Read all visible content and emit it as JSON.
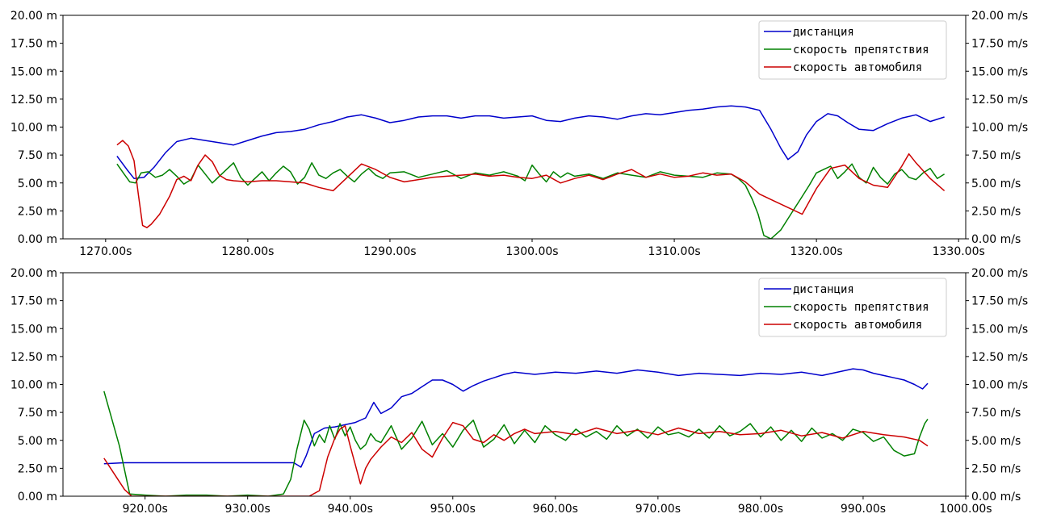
{
  "chart_data": [
    {
      "type": "line",
      "title": "",
      "xlim": [
        1267,
        1330.5
      ],
      "ylim_left": [
        0,
        20
      ],
      "ylim_right": [
        0,
        20
      ],
      "x_ticks": [
        1270,
        1280,
        1290,
        1300,
        1310,
        1320,
        1330
      ],
      "x_tick_labels": [
        "1270.00s",
        "1280.00s",
        "1290.00s",
        "1300.00s",
        "1310.00s",
        "1320.00s",
        "1330.00s"
      ],
      "y_ticks": [
        0,
        2.5,
        5,
        7.5,
        10,
        12.5,
        15,
        17.5,
        20
      ],
      "y_left_tick_labels": [
        "0.00 m",
        "2.50 m",
        "5.00 m",
        "7.50 m",
        "10.00 m",
        "12.50 m",
        "15.00 m",
        "17.50 m",
        "20.00 m"
      ],
      "y_right_tick_labels": [
        "0.00 m/s",
        "2.50 m/s",
        "5.00 m/s",
        "7.50 m/s",
        "10.00 m/s",
        "12.50 m/s",
        "15.00 m/s",
        "17.50 m/s",
        "20.00 m/s"
      ],
      "grid": false,
      "legend_position": "top-right",
      "series": [
        {
          "name": "дистанция",
          "color": "#0000cc",
          "axis": "left",
          "x": [
            1270.8,
            1271.5,
            1272.0,
            1272.7,
            1273.4,
            1274.2,
            1275.0,
            1276.0,
            1277.0,
            1278.0,
            1279.0,
            1280.0,
            1281.0,
            1282.0,
            1283.0,
            1284.0,
            1285.0,
            1286.0,
            1287.0,
            1288.0,
            1289.0,
            1290.0,
            1291.0,
            1292.0,
            1293.0,
            1294.0,
            1295.0,
            1296.0,
            1297.0,
            1298.0,
            1299.0,
            1300.0,
            1301.0,
            1302.0,
            1303.0,
            1304.0,
            1305.0,
            1306.0,
            1307.0,
            1308.0,
            1309.0,
            1310.0,
            1311.0,
            1312.0,
            1313.0,
            1314.0,
            1315.0,
            1316.0,
            1316.8,
            1317.5,
            1318.0,
            1318.7,
            1319.3,
            1320.0,
            1320.8,
            1321.5,
            1322.2,
            1323.0,
            1324.0,
            1325.0,
            1326.0,
            1327.0,
            1328.0,
            1329.0
          ],
          "values": [
            7.4,
            6.2,
            5.4,
            5.5,
            6.4,
            7.7,
            8.7,
            9.0,
            8.8,
            8.6,
            8.4,
            8.8,
            9.2,
            9.5,
            9.6,
            9.8,
            10.2,
            10.5,
            10.9,
            11.1,
            10.8,
            10.4,
            10.6,
            10.9,
            11.0,
            11.0,
            10.8,
            11.0,
            11.0,
            10.8,
            10.9,
            11.0,
            10.6,
            10.5,
            10.8,
            11.0,
            10.9,
            10.7,
            11.0,
            11.2,
            11.1,
            11.3,
            11.5,
            11.6,
            11.8,
            11.9,
            11.8,
            11.5,
            9.8,
            8.1,
            7.1,
            7.8,
            9.3,
            10.5,
            11.2,
            11.0,
            10.4,
            9.8,
            9.7,
            10.3,
            10.8,
            11.1,
            10.5,
            10.9
          ]
        },
        {
          "name": "скорость препятствия",
          "color": "#008000",
          "axis": "right",
          "x": [
            1270.8,
            1271.3,
            1271.7,
            1272.1,
            1272.5,
            1273.0,
            1273.5,
            1274.0,
            1274.5,
            1275.0,
            1275.5,
            1276.0,
            1276.5,
            1277.0,
            1277.5,
            1278.0,
            1278.5,
            1279.0,
            1279.5,
            1280.0,
            1280.5,
            1281.0,
            1281.5,
            1282.0,
            1282.5,
            1283.0,
            1283.5,
            1284.0,
            1284.5,
            1285.0,
            1285.5,
            1286.0,
            1286.5,
            1287.0,
            1287.5,
            1288.0,
            1288.5,
            1289.0,
            1289.5,
            1290.0,
            1291.0,
            1292.0,
            1293.0,
            1294.0,
            1295.0,
            1296.0,
            1297.0,
            1298.0,
            1299.0,
            1299.5,
            1300.0,
            1300.5,
            1301.0,
            1301.5,
            1302.0,
            1302.5,
            1303.0,
            1304.0,
            1305.0,
            1306.0,
            1307.0,
            1308.0,
            1309.0,
            1310.0,
            1311.0,
            1312.0,
            1313.0,
            1314.0,
            1314.5,
            1315.0,
            1315.5,
            1315.9,
            1316.3,
            1316.8,
            1317.5,
            1318.2,
            1318.9,
            1319.5,
            1320.0,
            1320.5,
            1321.0,
            1321.5,
            1322.0,
            1322.5,
            1323.0,
            1323.5,
            1324.0,
            1324.5,
            1325.0,
            1325.5,
            1326.0,
            1326.5,
            1327.0,
            1327.5,
            1328.0,
            1328.5,
            1329.0
          ],
          "values": [
            6.7,
            5.8,
            5.1,
            5.0,
            5.9,
            6.0,
            5.5,
            5.7,
            6.2,
            5.6,
            4.9,
            5.3,
            6.6,
            5.8,
            5.0,
            5.6,
            6.2,
            6.8,
            5.5,
            4.8,
            5.4,
            6.0,
            5.2,
            5.9,
            6.5,
            6.0,
            4.9,
            5.5,
            6.8,
            5.7,
            5.4,
            5.9,
            6.2,
            5.6,
            5.1,
            5.8,
            6.3,
            5.7,
            5.4,
            5.9,
            6.0,
            5.5,
            5.8,
            6.1,
            5.4,
            5.9,
            5.7,
            6.0,
            5.6,
            5.2,
            6.6,
            5.8,
            5.1,
            6.0,
            5.5,
            5.9,
            5.6,
            5.8,
            5.4,
            5.9,
            5.7,
            5.5,
            6.0,
            5.7,
            5.6,
            5.5,
            5.9,
            5.8,
            5.4,
            4.8,
            3.5,
            2.2,
            0.3,
            0.0,
            0.8,
            2.2,
            3.6,
            4.8,
            5.9,
            6.2,
            6.5,
            5.4,
            6.0,
            6.7,
            5.5,
            5.0,
            6.4,
            5.5,
            4.9,
            5.8,
            6.2,
            5.5,
            5.3,
            5.9,
            6.3,
            5.4,
            5.8
          ]
        },
        {
          "name": "скорость автомобиля",
          "color": "#cc0000",
          "axis": "right",
          "x": [
            1270.8,
            1271.2,
            1271.6,
            1272.0,
            1272.3,
            1272.6,
            1272.9,
            1273.2,
            1273.8,
            1274.5,
            1275.0,
            1275.5,
            1276.0,
            1276.5,
            1277.0,
            1277.5,
            1278.0,
            1278.5,
            1279.0,
            1280.0,
            1281.0,
            1282.0,
            1283.0,
            1284.0,
            1285.0,
            1286.0,
            1287.0,
            1288.0,
            1289.0,
            1290.0,
            1291.0,
            1292.0,
            1293.0,
            1294.0,
            1295.0,
            1296.0,
            1297.0,
            1298.0,
            1299.0,
            1300.0,
            1301.0,
            1302.0,
            1303.0,
            1304.0,
            1305.0,
            1306.0,
            1307.0,
            1308.0,
            1309.0,
            1310.0,
            1311.0,
            1312.0,
            1313.0,
            1314.0,
            1315.0,
            1316.0,
            1317.0,
            1318.0,
            1319.0,
            1320.0,
            1321.0,
            1322.0,
            1323.0,
            1324.0,
            1325.0,
            1326.0,
            1326.5,
            1327.0,
            1328.0,
            1329.0
          ],
          "values": [
            8.4,
            8.8,
            8.3,
            7.0,
            4.0,
            1.2,
            1.0,
            1.3,
            2.2,
            3.8,
            5.3,
            5.6,
            5.2,
            6.6,
            7.5,
            6.9,
            5.7,
            5.3,
            5.2,
            5.1,
            5.2,
            5.2,
            5.1,
            5.0,
            4.6,
            4.3,
            5.5,
            6.7,
            6.2,
            5.5,
            5.1,
            5.3,
            5.5,
            5.6,
            5.7,
            5.8,
            5.6,
            5.7,
            5.5,
            5.4,
            5.7,
            5.0,
            5.4,
            5.7,
            5.3,
            5.8,
            6.2,
            5.5,
            5.8,
            5.5,
            5.6,
            5.9,
            5.7,
            5.8,
            5.1,
            4.0,
            3.4,
            2.8,
            2.2,
            4.5,
            6.3,
            6.6,
            5.4,
            4.8,
            4.6,
            6.5,
            7.6,
            6.8,
            5.4,
            4.3
          ]
        }
      ]
    },
    {
      "type": "line",
      "title": "",
      "xlim": [
        912,
        1000
      ],
      "ylim_left": [
        0,
        20
      ],
      "ylim_right": [
        0,
        20
      ],
      "x_ticks": [
        920,
        930,
        940,
        950,
        960,
        970,
        980,
        990,
        1000
      ],
      "x_tick_labels": [
        "920.00s",
        "930.00s",
        "940.00s",
        "950.00s",
        "960.00s",
        "970.00s",
        "980.00s",
        "990.00s",
        "1000.00s"
      ],
      "y_ticks": [
        0,
        2.5,
        5,
        7.5,
        10,
        12.5,
        15,
        17.5,
        20
      ],
      "y_left_tick_labels": [
        "0.00 m",
        "2.50 m",
        "5.00 m",
        "7.50 m",
        "10.00 m",
        "12.50 m",
        "15.00 m",
        "17.50 m",
        "20.00 m"
      ],
      "y_right_tick_labels": [
        "0.00 m/s",
        "2.50 m/s",
        "5.00 m/s",
        "7.50 m/s",
        "10.00 m/s",
        "12.50 m/s",
        "15.00 m/s",
        "17.50 m/s",
        "20.00 m/s"
      ],
      "grid": false,
      "legend_position": "top-right",
      "series": [
        {
          "name": "дистанция",
          "color": "#0000cc",
          "axis": "left",
          "x": [
            916.0,
            918.0,
            920.0,
            925.0,
            930.0,
            934.5,
            935.2,
            935.7,
            936.5,
            937.5,
            938.5,
            939.5,
            940.5,
            941.5,
            942.3,
            943.0,
            944.0,
            945.0,
            946.0,
            947.0,
            948.0,
            949.0,
            950.0,
            951.0,
            952.0,
            953.0,
            954.0,
            955.0,
            956.0,
            957.0,
            958.0,
            960.0,
            962.0,
            964.0,
            966.0,
            968.0,
            970.0,
            972.0,
            974.0,
            976.0,
            978.0,
            980.0,
            982.0,
            984.0,
            986.0,
            988.0,
            989.0,
            990.0,
            991.0,
            992.0,
            993.0,
            994.0,
            995.0,
            995.8,
            996.3
          ],
          "values": [
            2.9,
            3.0,
            3.0,
            3.0,
            3.0,
            3.0,
            2.6,
            3.6,
            5.6,
            6.1,
            6.2,
            6.4,
            6.6,
            7.0,
            8.4,
            7.4,
            7.9,
            8.9,
            9.2,
            9.8,
            10.4,
            10.4,
            10.0,
            9.4,
            9.9,
            10.3,
            10.6,
            10.9,
            11.1,
            11.0,
            10.9,
            11.1,
            11.0,
            11.2,
            11.0,
            11.3,
            11.1,
            10.8,
            11.0,
            10.9,
            10.8,
            11.0,
            10.9,
            11.1,
            10.8,
            11.2,
            11.4,
            11.3,
            11.0,
            10.8,
            10.6,
            10.4,
            10.0,
            9.6,
            10.1
          ]
        },
        {
          "name": "скорость препятствия",
          "color": "#008000",
          "axis": "right",
          "x": [
            916.0,
            917.5,
            918.5,
            920.0,
            922.0,
            924.0,
            926.0,
            928.0,
            930.0,
            932.0,
            933.5,
            934.2,
            934.8,
            935.5,
            936.0,
            936.5,
            937.0,
            937.5,
            938.0,
            938.5,
            939.0,
            939.5,
            940.0,
            940.5,
            941.0,
            941.5,
            942.0,
            942.5,
            943.0,
            944.0,
            945.0,
            946.0,
            947.0,
            948.0,
            949.0,
            950.0,
            951.0,
            952.0,
            953.0,
            954.0,
            955.0,
            956.0,
            957.0,
            958.0,
            959.0,
            960.0,
            961.0,
            962.0,
            963.0,
            964.0,
            965.0,
            966.0,
            967.0,
            968.0,
            969.0,
            970.0,
            971.0,
            972.0,
            973.0,
            974.0,
            975.0,
            976.0,
            977.0,
            978.0,
            979.0,
            980.0,
            981.0,
            982.0,
            983.0,
            984.0,
            985.0,
            986.0,
            987.0,
            988.0,
            989.0,
            990.0,
            991.0,
            992.0,
            993.0,
            994.0,
            995.0,
            995.5,
            996.0,
            996.3
          ],
          "values": [
            9.4,
            4.5,
            0.2,
            0.1,
            0.0,
            0.1,
            0.1,
            0.0,
            0.1,
            0.0,
            0.2,
            1.5,
            4.2,
            6.8,
            6.0,
            4.5,
            5.5,
            4.8,
            6.3,
            5.1,
            6.5,
            5.4,
            6.2,
            5.0,
            4.2,
            4.6,
            5.6,
            5.0,
            4.8,
            6.3,
            4.2,
            5.2,
            6.7,
            4.6,
            5.6,
            4.4,
            5.9,
            6.8,
            4.4,
            5.1,
            6.4,
            4.7,
            5.9,
            4.8,
            6.3,
            5.5,
            5.0,
            6.0,
            5.3,
            5.8,
            5.1,
            6.3,
            5.4,
            6.0,
            5.2,
            6.2,
            5.5,
            5.7,
            5.3,
            6.0,
            5.2,
            6.3,
            5.4,
            5.8,
            6.5,
            5.3,
            6.2,
            5.0,
            5.9,
            4.9,
            6.1,
            5.2,
            5.6,
            5.0,
            6.0,
            5.7,
            4.9,
            5.3,
            4.1,
            3.6,
            3.8,
            5.3,
            6.5,
            6.9
          ]
        },
        {
          "name": "скорость автомобиля",
          "color": "#cc0000",
          "axis": "right",
          "x": [
            916.0,
            917.0,
            918.0,
            918.7,
            920.0,
            925.0,
            930.0,
            935.0,
            936.0,
            937.0,
            937.8,
            938.5,
            939.0,
            939.5,
            940.0,
            940.5,
            941.0,
            941.5,
            942.0,
            943.0,
            944.0,
            945.0,
            946.0,
            947.0,
            948.0,
            949.0,
            950.0,
            951.0,
            952.0,
            953.0,
            954.0,
            955.0,
            956.0,
            957.0,
            958.0,
            960.0,
            962.0,
            964.0,
            966.0,
            968.0,
            970.0,
            972.0,
            974.0,
            976.0,
            978.0,
            980.0,
            982.0,
            984.0,
            986.0,
            988.0,
            990.0,
            992.0,
            994.0,
            995.5,
            996.3
          ],
          "values": [
            3.4,
            2.0,
            0.6,
            0.0,
            0.0,
            0.0,
            0.0,
            0.0,
            0.0,
            0.5,
            3.5,
            5.2,
            6.0,
            6.3,
            4.5,
            2.8,
            1.1,
            2.5,
            3.3,
            4.4,
            5.3,
            4.8,
            5.7,
            4.2,
            3.5,
            5.2,
            6.6,
            6.3,
            5.1,
            4.8,
            5.5,
            5.0,
            5.6,
            6.0,
            5.6,
            5.8,
            5.5,
            6.1,
            5.6,
            5.9,
            5.5,
            6.1,
            5.6,
            5.8,
            5.5,
            5.6,
            5.9,
            5.4,
            5.7,
            5.2,
            5.8,
            5.5,
            5.3,
            5.0,
            4.5
          ]
        }
      ]
    }
  ]
}
